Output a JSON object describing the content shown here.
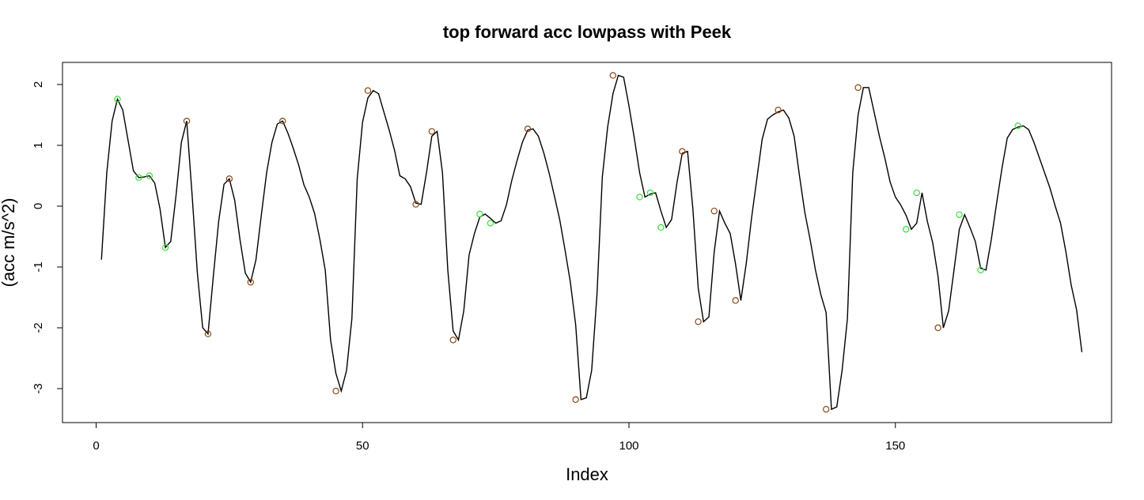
{
  "chart_data": {
    "type": "line",
    "title": "top forward acc lowpass with Peek",
    "xlabel": "Index",
    "ylabel": "(acc m/s^2)",
    "xlim": [
      1,
      183
    ],
    "ylim": [
      -3.5,
      2.3
    ],
    "x_ticks": [
      0,
      50,
      100,
      150
    ],
    "y_ticks": [
      -3,
      -2,
      -1,
      0,
      1,
      2
    ],
    "colors": {
      "line": "#000000",
      "peaks": "#8b4513",
      "green_peaks": "#3ddc3d"
    },
    "series": [
      {
        "values": [
          -0.88,
          0.55,
          1.4,
          1.76,
          1.58,
          1.08,
          0.58,
          0.47,
          0.48,
          0.5,
          0.38,
          -0.05,
          -0.68,
          -0.58,
          0.18,
          1.05,
          1.4,
          0.2,
          -1.1,
          -2.0,
          -2.1,
          -1.15,
          -0.25,
          0.36,
          0.45,
          0.1,
          -0.55,
          -1.1,
          -1.25,
          -0.88,
          -0.15,
          0.55,
          1.05,
          1.35,
          1.4,
          1.2,
          0.95,
          0.68,
          0.35,
          0.15,
          -0.12,
          -0.55,
          -1.05,
          -2.2,
          -2.75,
          -3.04,
          -2.7,
          -1.85,
          0.45,
          1.38,
          1.78,
          1.9,
          1.85,
          1.55,
          1.25,
          0.92,
          0.5,
          0.45,
          0.32,
          0.05,
          0.03,
          0.55,
          1.15,
          1.23,
          0.55,
          -1.05,
          -2.05,
          -2.2,
          -1.72,
          -0.8,
          -0.45,
          -0.18,
          -0.13,
          -0.2,
          -0.28,
          -0.24,
          0.02,
          0.42,
          0.75,
          1.05,
          1.25,
          1.27,
          1.15,
          0.88,
          0.55,
          0.17,
          -0.22,
          -0.72,
          -1.25,
          -1.95,
          -3.18,
          -3.15,
          -2.7,
          -1.45,
          0.48,
          1.3,
          1.85,
          2.15,
          2.12,
          1.65,
          1.12,
          0.55,
          0.15,
          0.2,
          0.22,
          -0.08,
          -0.35,
          -0.22,
          0.38,
          0.87,
          0.9,
          -0.05,
          -1.35,
          -1.9,
          -1.82,
          -0.75,
          -0.08,
          -0.28,
          -0.45,
          -0.95,
          -1.55,
          -0.95,
          -0.2,
          0.45,
          1.1,
          1.43,
          1.5,
          1.55,
          1.58,
          1.45,
          1.15,
          0.5,
          -0.1,
          -0.55,
          -1.05,
          -1.45,
          -1.75,
          -3.34,
          -3.3,
          -2.7,
          -1.85,
          0.55,
          1.5,
          1.95,
          1.95,
          1.55,
          1.15,
          0.8,
          0.4,
          0.15,
          0.02,
          -0.15,
          -0.38,
          -0.28,
          0.22,
          -0.25,
          -0.6,
          -1.15,
          -2.0,
          -1.72,
          -1.05,
          -0.38,
          -0.14,
          -0.35,
          -0.58,
          -1.02,
          -1.05,
          -0.55,
          0.05,
          0.62,
          1.12,
          1.26,
          1.3,
          1.32,
          1.26,
          1.05,
          0.8,
          0.55,
          0.3,
          0.0,
          -0.28,
          -0.75,
          -1.3,
          -1.7,
          -2.4
        ]
      }
    ],
    "peaks": {
      "brown": {
        "x": [
          17,
          21,
          25,
          29,
          35,
          45,
          51,
          60,
          63,
          67,
          81,
          90,
          97,
          110,
          113,
          116,
          120,
          128,
          137,
          143,
          158
        ],
        "y": [
          1.4,
          -2.1,
          0.45,
          -1.25,
          1.4,
          -3.04,
          1.9,
          0.03,
          1.23,
          -2.2,
          1.27,
          -3.18,
          2.15,
          0.9,
          -1.9,
          -0.08,
          -1.55,
          1.58,
          -3.34,
          1.95,
          -2.0
        ]
      },
      "green": {
        "x": [
          4,
          8,
          10,
          13,
          72,
          74,
          102,
          104,
          106,
          152,
          154,
          162,
          166,
          173
        ],
        "y": [
          1.76,
          0.47,
          0.5,
          -0.68,
          -0.13,
          -0.28,
          0.15,
          0.22,
          -0.35,
          -0.38,
          0.22,
          -0.14,
          -1.05,
          1.32
        ]
      }
    }
  }
}
